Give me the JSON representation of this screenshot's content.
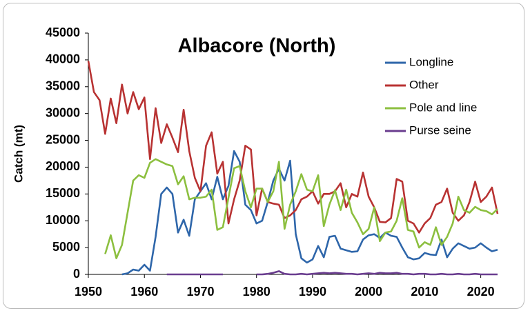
{
  "chart_data": {
    "type": "line",
    "title": "Albacore (North)",
    "y_label": "Catch (mt)",
    "x": [
      1950,
      1951,
      1952,
      1953,
      1954,
      1955,
      1956,
      1957,
      1958,
      1959,
      1960,
      1961,
      1962,
      1963,
      1964,
      1965,
      1966,
      1967,
      1968,
      1969,
      1970,
      1971,
      1972,
      1973,
      1974,
      1975,
      1976,
      1977,
      1978,
      1979,
      1980,
      1981,
      1982,
      1983,
      1984,
      1985,
      1986,
      1987,
      1988,
      1989,
      1990,
      1991,
      1992,
      1993,
      1994,
      1995,
      1996,
      1997,
      1998,
      1999,
      2000,
      2001,
      2002,
      2003,
      2004,
      2005,
      2006,
      2007,
      2008,
      2009,
      2010,
      2011,
      2012,
      2013,
      2014,
      2015,
      2016,
      2017,
      2018,
      2019,
      2020,
      2021,
      2022,
      2023
    ],
    "series": [
      {
        "name": "Longline",
        "color": "#2e66aa",
        "values": [
          null,
          null,
          null,
          null,
          null,
          null,
          0,
          200,
          900,
          700,
          1800,
          700,
          7000,
          15000,
          16200,
          15000,
          7800,
          10200,
          7200,
          14000,
          15500,
          17000,
          14000,
          18200,
          14000,
          16500,
          23000,
          21000,
          13000,
          12000,
          9500,
          10000,
          13500,
          17500,
          19700,
          17500,
          21200,
          7500,
          3000,
          2200,
          2800,
          5300,
          3200,
          7000,
          7200,
          4800,
          4500,
          4200,
          4300,
          6500,
          7300,
          7500,
          6800,
          7800,
          7200,
          7000,
          5000,
          3200,
          2800,
          3000,
          4000,
          3700,
          3600,
          6500,
          3200,
          4800,
          5800,
          5300,
          4800,
          5000,
          5800,
          5000,
          4300,
          4600
        ]
      },
      {
        "name": "Other",
        "color": "#b83232",
        "values": [
          39800,
          34000,
          32500,
          26200,
          32800,
          28200,
          35400,
          30000,
          34000,
          30800,
          33000,
          21500,
          31000,
          24500,
          28000,
          25500,
          22800,
          30700,
          23000,
          18000,
          15500,
          24000,
          26500,
          18800,
          21000,
          9500,
          14000,
          17500,
          24000,
          23300,
          11000,
          16000,
          13500,
          13200,
          13000,
          10500,
          11000,
          12000,
          14000,
          14500,
          15500,
          13200,
          15000,
          15000,
          15500,
          17000,
          12500,
          15000,
          14500,
          19000,
          14500,
          12500,
          9800,
          9700,
          10500,
          17800,
          17300,
          10000,
          9500,
          7800,
          9500,
          10500,
          13000,
          13500,
          16000,
          11500,
          10000,
          11000,
          13500,
          17300,
          13500,
          14500,
          16200,
          11300
        ]
      },
      {
        "name": "Pole and line",
        "color": "#8cbf3f",
        "values": [
          null,
          null,
          null,
          3800,
          7300,
          3000,
          5500,
          11500,
          17500,
          18500,
          18000,
          20800,
          21500,
          21000,
          20500,
          20200,
          16800,
          18300,
          14000,
          14300,
          14300,
          14500,
          15800,
          8300,
          8800,
          14300,
          19800,
          20200,
          15500,
          12500,
          16000,
          16000,
          13500,
          15500,
          21000,
          8500,
          13000,
          15500,
          18700,
          15800,
          15500,
          18500,
          9000,
          13000,
          15700,
          12000,
          15800,
          11500,
          9700,
          7500,
          8500,
          12500,
          6200,
          7800,
          8000,
          10000,
          14200,
          8300,
          8000,
          5000,
          6000,
          5500,
          8800,
          5500,
          7000,
          9500,
          14500,
          12000,
          11500,
          12600,
          12000,
          11800,
          11200,
          12200
        ]
      },
      {
        "name": "Purse seine",
        "color": "#6a3d8f",
        "values": [
          null,
          null,
          null,
          null,
          null,
          null,
          null,
          null,
          null,
          null,
          null,
          null,
          null,
          null,
          0,
          0,
          0,
          0,
          0,
          0,
          0,
          0,
          0,
          0,
          0,
          null,
          null,
          null,
          null,
          null,
          0,
          0,
          100,
          300,
          600,
          100,
          0,
          0,
          100,
          0,
          100,
          200,
          300,
          200,
          300,
          200,
          100,
          100,
          0,
          100,
          200,
          100,
          300,
          200,
          200,
          300,
          100,
          100,
          0,
          100,
          100,
          0,
          0,
          100,
          0,
          0,
          100,
          0,
          0,
          100,
          0,
          0,
          0,
          0
        ]
      }
    ],
    "xlim": [
      1950,
      2023
    ],
    "xticks": [
      1950,
      1960,
      1970,
      1980,
      1990,
      2000,
      2010,
      2020
    ],
    "ylim": [
      0,
      45000
    ],
    "yticks": [
      0,
      5000,
      10000,
      15000,
      20000,
      25000,
      30000,
      35000,
      40000,
      45000
    ],
    "legend": "upper right"
  }
}
